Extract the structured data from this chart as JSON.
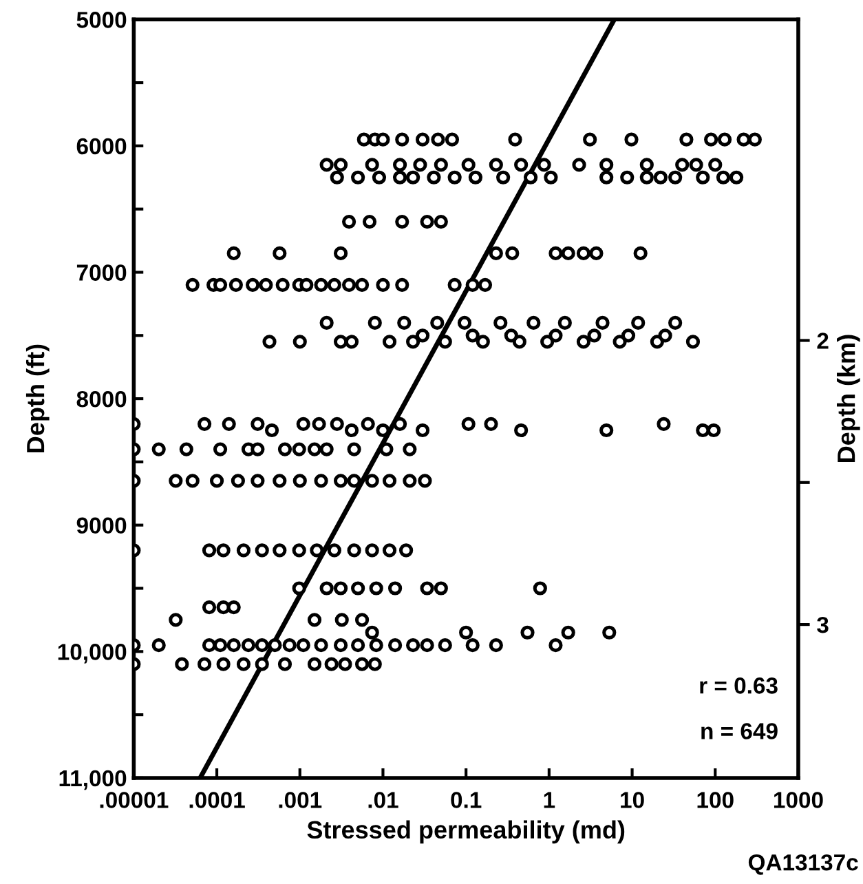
{
  "chart_data": {
    "type": "scatter",
    "xlabel": "Stressed permeability (md)",
    "ylabel": "Depth (ft)",
    "y2label": "Depth (km)",
    "log": "x",
    "grid": false,
    "xlim": [
      1e-05,
      1000
    ],
    "xticks": [
      {
        "value": 1e-05,
        "label": ".00001"
      },
      {
        "value": 0.0001,
        "label": ".0001"
      },
      {
        "value": 0.001,
        "label": ".001"
      },
      {
        "value": 0.01,
        "label": ".01"
      },
      0.1,
      1,
      10,
      100,
      1000
    ],
    "ylim": [
      11000,
      5000
    ],
    "yticks": [
      5000,
      {
        "value": 5500,
        "label": null
      },
      6000,
      {
        "value": 6500,
        "label": null
      },
      7000,
      {
        "value": 7500,
        "label": null
      },
      8000,
      {
        "value": 8500,
        "label": null
      },
      9000,
      {
        "value": 9500,
        "label": null
      },
      {
        "value": 10000,
        "label": "10,000"
      },
      {
        "value": 10500,
        "label": null
      },
      {
        "value": 11000,
        "label": "11,000"
      }
    ],
    "y2lim": [
      3.54,
      0.87
    ],
    "y2ticks": [
      2,
      {
        "value": 2.5,
        "label": null
      },
      3
    ],
    "series": [
      {
        "color": "#000000",
        "marker": "circle",
        "x": [
          0.0059,
          0.008,
          0.01,
          0.017,
          0.03,
          0.046,
          0.068,
          0.39,
          3.1,
          9.8,
          45,
          89,
          130,
          220,
          300,
          0.0021,
          0.0031,
          0.0074,
          0.016,
          0.028,
          0.05,
          0.107,
          0.23,
          0.46,
          0.87,
          2.3,
          4.9,
          15,
          40,
          59,
          100,
          0.0028,
          0.005,
          0.009,
          0.016,
          0.023,
          0.041,
          0.073,
          0.13,
          0.28,
          0.6,
          1.05,
          4.9,
          8.7,
          15,
          22,
          33,
          71,
          125,
          180,
          0.0039,
          0.0069,
          0.017,
          0.034,
          0.05,
          0.00016,
          0.00057,
          0.0031,
          0.23,
          0.36,
          1.2,
          1.7,
          2.6,
          3.7,
          12.6,
          5.1e-05,
          9.1e-05,
          0.00011,
          0.00017,
          0.00027,
          0.00039,
          0.00062,
          0.00098,
          0.0012,
          0.0018,
          0.0026,
          0.0039,
          0.0056,
          0.01,
          0.017,
          0.073,
          0.12,
          0.17,
          0.0021,
          0.008,
          0.018,
          0.045,
          0.096,
          0.26,
          0.65,
          1.55,
          4.4,
          11.8,
          33,
          0.00043,
          0.001,
          0.0031,
          0.0042,
          0.012,
          0.023,
          0.056,
          0.16,
          0.44,
          0.95,
          2.6,
          7.1,
          20,
          54,
          0.03,
          0.12,
          0.35,
          1.2,
          3.5,
          9,
          25,
          1e-05,
          7.1e-05,
          0.00014,
          0.00031,
          0.0011,
          0.0017,
          0.0028,
          0.0066,
          0.016,
          0.107,
          0.2,
          24,
          0.00046,
          0.0042,
          0.01,
          0.03,
          0.46,
          4.9,
          71,
          96,
          1e-05,
          2e-05,
          4.3e-05,
          0.00011,
          0.00024,
          0.00031,
          0.00066,
          0.00098,
          0.0015,
          0.0021,
          0.0045,
          0.011,
          0.021,
          1e-05,
          3.2e-05,
          5.1e-05,
          0.0001,
          0.00018,
          0.00031,
          0.00057,
          0.001,
          0.0018,
          0.0031,
          0.0045,
          0.0074,
          0.012,
          0.021,
          0.032,
          1e-05,
          8.1e-05,
          0.00012,
          0.00021,
          0.00035,
          0.00057,
          0.00098,
          0.0016,
          0.0026,
          0.0045,
          0.0074,
          0.012,
          0.019,
          0.00098,
          0.0021,
          0.0031,
          0.005,
          0.0083,
          0.014,
          0.034,
          0.05,
          0.78,
          8.1e-05,
          0.00012,
          0.00016,
          3.2e-05,
          0.0015,
          0.0032,
          0.0056,
          0.0074,
          0.1,
          0.55,
          1.7,
          5.3,
          1e-05,
          2e-05,
          8.1e-05,
          0.00011,
          0.00016,
          0.00024,
          0.00035,
          0.0005,
          0.00075,
          0.0011,
          0.0018,
          0.0031,
          0.005,
          0.0083,
          0.014,
          0.023,
          0.034,
          0.056,
          0.12,
          0.23,
          1.2,
          1e-05,
          3.8e-05,
          7.1e-05,
          0.00012,
          0.00021,
          0.00035,
          0.00066,
          0.0015,
          0.0024,
          0.0035,
          0.0056,
          0.008
        ],
        "values": [
          5950,
          5950,
          5950,
          5950,
          5950,
          5950,
          5950,
          5950,
          5950,
          5950,
          5950,
          5950,
          5950,
          5950,
          5950,
          6150,
          6150,
          6150,
          6150,
          6150,
          6150,
          6150,
          6150,
          6150,
          6150,
          6150,
          6150,
          6150,
          6150,
          6150,
          6150,
          6250,
          6250,
          6250,
          6250,
          6250,
          6250,
          6250,
          6250,
          6250,
          6250,
          6250,
          6250,
          6250,
          6250,
          6250,
          6250,
          6250,
          6250,
          6250,
          6600,
          6600,
          6600,
          6600,
          6600,
          6850,
          6850,
          6850,
          6850,
          6850,
          6850,
          6850,
          6850,
          6850,
          6850,
          7100,
          7100,
          7100,
          7100,
          7100,
          7100,
          7100,
          7100,
          7100,
          7100,
          7100,
          7100,
          7100,
          7100,
          7100,
          7100,
          7100,
          7100,
          7400,
          7400,
          7400,
          7400,
          7400,
          7400,
          7400,
          7400,
          7400,
          7400,
          7400,
          7550,
          7550,
          7550,
          7550,
          7550,
          7550,
          7550,
          7550,
          7550,
          7550,
          7550,
          7550,
          7550,
          7550,
          7500,
          7500,
          7500,
          7500,
          7500,
          7500,
          7500,
          8200,
          8200,
          8200,
          8200,
          8200,
          8200,
          8200,
          8200,
          8200,
          8200,
          8200,
          8200,
          8250,
          8250,
          8250,
          8250,
          8250,
          8250,
          8250,
          8250,
          8400,
          8400,
          8400,
          8400,
          8400,
          8400,
          8400,
          8400,
          8400,
          8400,
          8400,
          8400,
          8400,
          8650,
          8650,
          8650,
          8650,
          8650,
          8650,
          8650,
          8650,
          8650,
          8650,
          8650,
          8650,
          8650,
          8650,
          8650,
          9200,
          9200,
          9200,
          9200,
          9200,
          9200,
          9200,
          9200,
          9200,
          9200,
          9200,
          9200,
          9200,
          9500,
          9500,
          9500,
          9500,
          9500,
          9500,
          9500,
          9500,
          9500,
          9650,
          9650,
          9650,
          9750,
          9750,
          9750,
          9750,
          9850,
          9850,
          9850,
          9850,
          9850,
          9950,
          9950,
          9950,
          9950,
          9950,
          9950,
          9950,
          9950,
          9950,
          9950,
          9950,
          9950,
          9950,
          9950,
          9950,
          9950,
          9950,
          9950,
          9950,
          9950,
          9950,
          10100,
          10100,
          10100,
          10100,
          10100,
          10100,
          10100,
          10100,
          10100,
          10100,
          10100,
          10100
        ]
      },
      {
        "type": "line",
        "color": "#000000",
        "x": [
          6.3e-05,
          6.1
        ],
        "values": [
          11000,
          5000
        ]
      }
    ],
    "annotations": [
      "r = 0.63",
      "n = 649",
      "QA13137c"
    ]
  }
}
